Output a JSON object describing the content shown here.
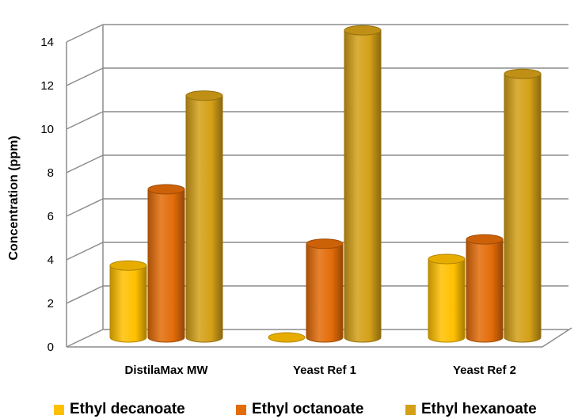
{
  "chart_data": {
    "type": "bar",
    "title": "",
    "ylabel": "Concentration (ppm)",
    "xlabel": "",
    "ylim": [
      0,
      14
    ],
    "yticks": [
      "0",
      "2",
      "4",
      "6",
      "8",
      "10",
      "12",
      "14"
    ],
    "grid": true,
    "style": "3d-cylinder",
    "legend_position": "bottom",
    "categories": [
      "DistilaMax MW",
      "Yeast Ref 1",
      "Yeast Ref 2"
    ],
    "series": [
      {
        "name": "Ethyl decanoate",
        "color": "#FFC000",
        "values": [
          3.3,
          0,
          3.6
        ]
      },
      {
        "name": "Ethyl octanoate",
        "color": "#E36C09",
        "values": [
          6.8,
          4.3,
          4.5
        ]
      },
      {
        "name": "Ethyl hexanoate",
        "color": "#D4A017",
        "values": [
          11.1,
          14.1,
          12.1
        ]
      }
    ]
  }
}
